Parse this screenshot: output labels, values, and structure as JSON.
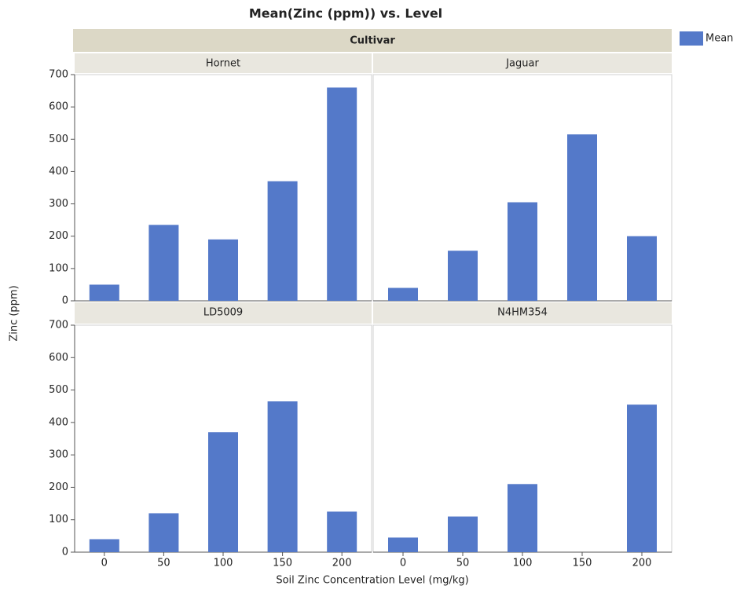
{
  "chart_data": {
    "type": "bar",
    "title": "Mean(Zinc (ppm)) vs. Level",
    "facet_label": "Cultivar",
    "x_label": "Soil Zinc Concentration Level (mg/kg)",
    "y_label": "Zinc (ppm)",
    "legend": "Mean",
    "color": "#5479c9",
    "categories": [
      "0",
      "50",
      "100",
      "150",
      "200"
    ],
    "ylim": [
      0,
      700
    ],
    "yticks": [
      0,
      100,
      200,
      300,
      400,
      500,
      600,
      700
    ],
    "panels": [
      {
        "name": "Hornet",
        "values": [
          50,
          235,
          190,
          370,
          660
        ]
      },
      {
        "name": "Jaguar",
        "values": [
          40,
          155,
          305,
          515,
          200
        ]
      },
      {
        "name": "LD5009",
        "values": [
          40,
          120,
          370,
          465,
          125
        ]
      },
      {
        "name": "N4HM354",
        "values": [
          45,
          110,
          210,
          null,
          455
        ]
      }
    ]
  }
}
